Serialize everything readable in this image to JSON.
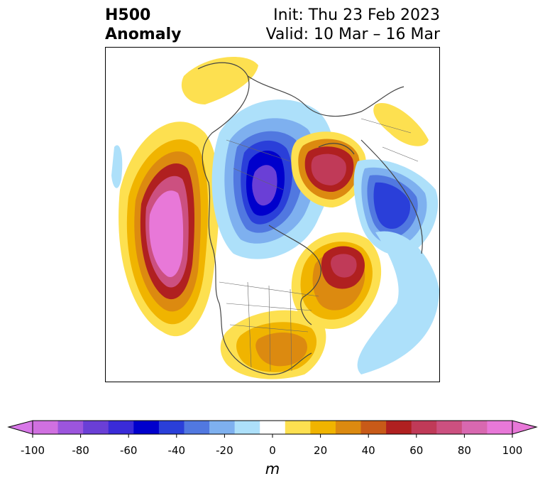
{
  "header": {
    "title_line1": "H500",
    "title_line2": "Anomaly",
    "init": "Init: Thu 23 Feb 2023",
    "valid": "Valid: 10 Mar – 16 Mar"
  },
  "colorbar": {
    "unit": "m",
    "levels": [
      -100,
      -90,
      -80,
      -70,
      -60,
      -50,
      -40,
      -30,
      -20,
      -10,
      10,
      20,
      30,
      40,
      50,
      60,
      70,
      80,
      90,
      100
    ],
    "ticks": [
      "-100",
      "-80",
      "-60",
      "-40",
      "-20",
      "0",
      "20",
      "40",
      "60",
      "80",
      "100"
    ],
    "colors": [
      "#d070e0",
      "#9c55dd",
      "#6a3fd6",
      "#3a2bd8",
      "#0000cc",
      "#2a3fd9",
      "#5178e0",
      "#7eb0ef",
      "#ade0fa",
      "#ffffff",
      "#fde050",
      "#f0b400",
      "#dc8a10",
      "#c85a18",
      "#b02020",
      "#c03a58",
      "#cc5080",
      "#d868b0",
      "#e878d8"
    ],
    "extend_low_color": "#d878e8",
    "extend_high_color": "#e878d8"
  },
  "map": {
    "projection": "north-polar-stereographic",
    "region": "Northern Hemisphere / North America focus",
    "features": [
      "Negative anomaly over Arctic / northern Canada",
      "Strong positive anomaly over NE Pacific",
      "Positive anomaly over eastern US and North Atlantic",
      "Positive anomaly over northern Siberia"
    ]
  }
}
